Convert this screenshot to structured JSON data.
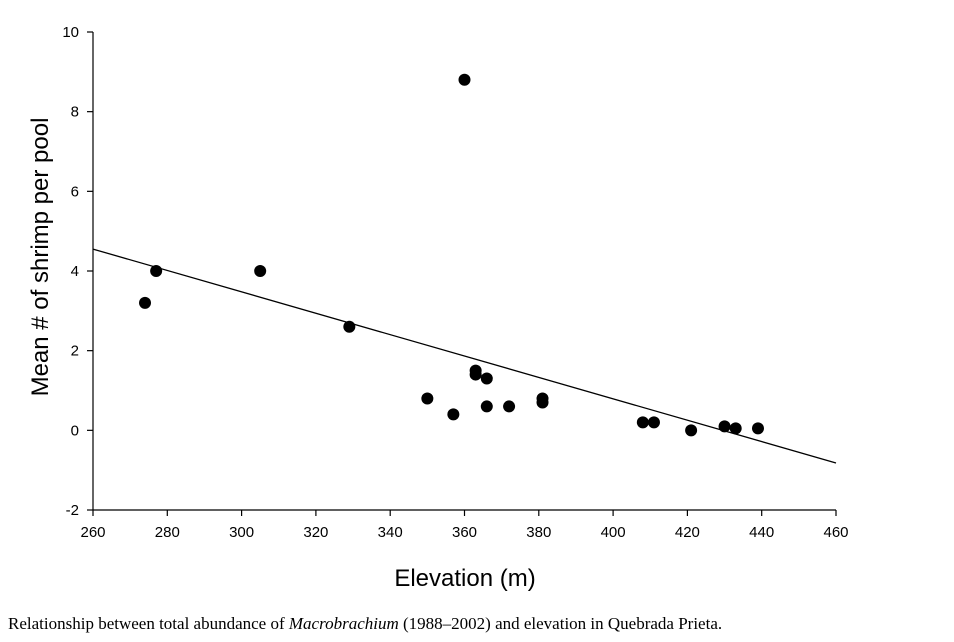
{
  "chart_data": {
    "type": "scatter",
    "xlabel": "Elevation (m)",
    "ylabel": "Mean # of shrimp per pool",
    "xlim": [
      260,
      460
    ],
    "ylim": [
      -2,
      10
    ],
    "xticks": [
      "260",
      "280",
      "300",
      "320",
      "340",
      "360",
      "380",
      "400",
      "420",
      "440",
      "460"
    ],
    "yticks": [
      "-2",
      "0",
      "2",
      "4",
      "6",
      "8",
      "10"
    ],
    "grid": false,
    "series": [
      {
        "points": [
          [
            274,
            3.2
          ],
          [
            277,
            4.0
          ],
          [
            305,
            4.0
          ],
          [
            329,
            2.6
          ],
          [
            350,
            0.8
          ],
          [
            357,
            0.4
          ],
          [
            360,
            8.8
          ],
          [
            363,
            1.5
          ],
          [
            363,
            1.4
          ],
          [
            366,
            1.3
          ],
          [
            366,
            0.6
          ],
          [
            372,
            0.6
          ],
          [
            381,
            0.8
          ],
          [
            381,
            0.7
          ],
          [
            408,
            0.2
          ],
          [
            411,
            0.2
          ],
          [
            421,
            0.0
          ],
          [
            430,
            0.1
          ],
          [
            433,
            0.05
          ],
          [
            439,
            0.05
          ]
        ],
        "marker_color": "#000000"
      }
    ],
    "trendline": {
      "x": [
        260,
        460
      ],
      "y": [
        4.55,
        -0.82
      ],
      "color": "#000000"
    }
  },
  "caption": {
    "before": "Relationship between total abundance of ",
    "italic": "Macrobrachium",
    "after": " (1988–2002) and elevation in Quebrada Prieta."
  }
}
